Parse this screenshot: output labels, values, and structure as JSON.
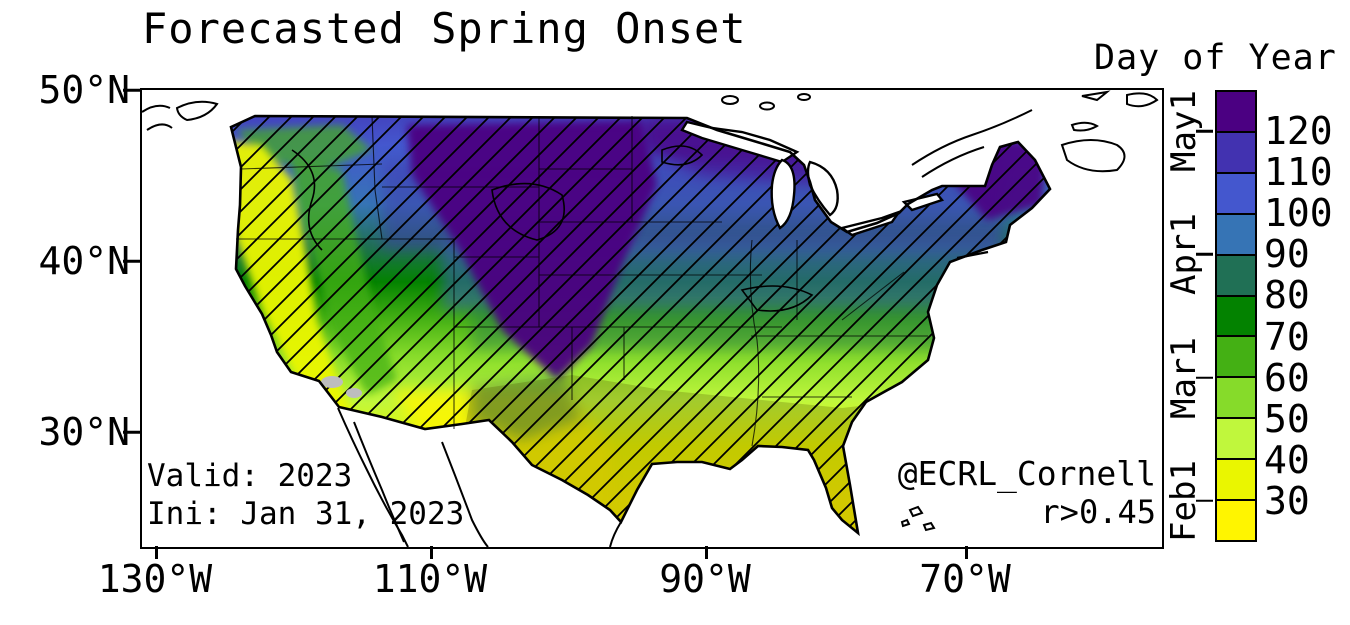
{
  "title": "Forecasted Spring Onset",
  "colorbar": {
    "title": "Day of Year",
    "tick_labels": [
      "120",
      "110",
      "100",
      "90",
      "80",
      "70",
      "60",
      "50",
      "40",
      "30"
    ],
    "month_labels": [
      "May1",
      "Apr1",
      "Mar1",
      "Feb1"
    ],
    "colors_top_to_bottom": [
      "#4B0082",
      "#4232B0",
      "#4457CE",
      "#3674B5",
      "#207055",
      "#038200",
      "#44B014",
      "#86DB2A",
      "#C0F73C",
      "#EAF600",
      "#FFF500"
    ]
  },
  "axes": {
    "lat_ticks": [
      "50°N",
      "40°N",
      "30°N"
    ],
    "lon_ticks": [
      "130°W",
      "110°W",
      "90°W",
      "70°W"
    ]
  },
  "annotations": {
    "valid": "Valid: 2023",
    "init": "Ini: Jan 31, 2023",
    "credit": "@ECRL_Cornell",
    "threshold": "r>0.45"
  },
  "chart_data": {
    "type": "filled_contour_map",
    "title": "Forecasted Spring Onset",
    "colorbar_title": "Day of Year",
    "levels": [
      30,
      40,
      50,
      60,
      70,
      80,
      90,
      100,
      110,
      120
    ],
    "level_colors_low_to_high": [
      "#FFF500",
      "#EAF600",
      "#C0F73C",
      "#86DB2A",
      "#44B014",
      "#038200",
      "#207055",
      "#3674B5",
      "#4457CE",
      "#4232B0",
      "#4B0082"
    ],
    "month_markers": [
      "Feb1",
      "Mar1",
      "Apr1",
      "May1"
    ],
    "hatching_label": "r>0.45",
    "lat_ticks_deg_n": [
      50,
      40,
      30
    ],
    "lon_ticks_deg_w": [
      130,
      110,
      90,
      70
    ]
  }
}
